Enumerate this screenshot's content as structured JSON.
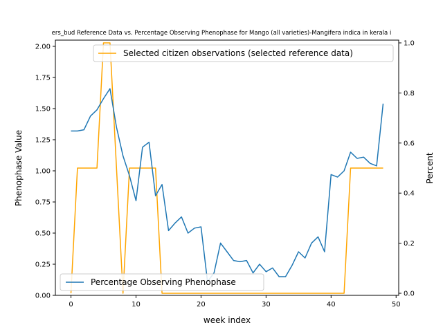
{
  "chart_data": {
    "type": "line",
    "title": "ers_bud Reference Data vs. Percentage Observing Phenophase for Mango (all varieties)-Mangifera indica in kerala i",
    "xlabel": "week index",
    "ylabel_left": "Phenophase Value",
    "ylabel_right": "Percent",
    "xlim": [
      -2.4,
      50.4
    ],
    "ylim_left": [
      0,
      2.05
    ],
    "ylim_right": [
      0,
      1.0
    ],
    "x_ticks": [
      0,
      10,
      20,
      30,
      40,
      50
    ],
    "y_left_ticks": [
      "0.00",
      "0.25",
      "0.50",
      "0.75",
      "1.00",
      "1.25",
      "1.50",
      "1.75",
      "2.00"
    ],
    "y_right_ticks": [
      "0.0",
      "0.2",
      "0.4",
      "0.6",
      "0.8",
      "1.0"
    ],
    "grid": false,
    "series": [
      {
        "name": "Percentage Observing Phenophase",
        "axis": "left",
        "color": "#1f77b4",
        "legend_position": "lower-left",
        "x": [
          0,
          1,
          2,
          3,
          4,
          5,
          6,
          7,
          8,
          9,
          10,
          11,
          12,
          13,
          14,
          15,
          16,
          17,
          18,
          19,
          20,
          21,
          22,
          23,
          24,
          25,
          26,
          27,
          28,
          29,
          30,
          31,
          32,
          33,
          34,
          35,
          36,
          37,
          38,
          39,
          40,
          41,
          42,
          43,
          44,
          45,
          46,
          47,
          48
        ],
        "values": [
          1.32,
          1.32,
          1.33,
          1.44,
          1.49,
          1.58,
          1.66,
          1.35,
          1.12,
          0.96,
          0.76,
          1.19,
          1.23,
          0.8,
          0.89,
          0.52,
          0.58,
          0.63,
          0.5,
          0.54,
          0.55,
          0.11,
          0.18,
          0.42,
          0.35,
          0.28,
          0.27,
          0.28,
          0.18,
          0.25,
          0.19,
          0.22,
          0.15,
          0.15,
          0.24,
          0.35,
          0.3,
          0.42,
          0.47,
          0.35,
          0.97,
          0.95,
          1.0,
          1.15,
          1.1,
          1.11,
          1.06,
          1.04,
          1.54
        ]
      },
      {
        "name": "Selected citizen observations (selected reference data)",
        "axis": "right",
        "color": "#ffa500",
        "legend_position": "upper-right",
        "x": [
          0,
          1,
          2,
          3,
          4,
          5,
          6,
          7,
          8,
          9,
          10,
          11,
          12,
          13,
          14,
          15,
          16,
          17,
          18,
          19,
          20,
          21,
          22,
          23,
          24,
          25,
          26,
          27,
          28,
          29,
          30,
          31,
          32,
          33,
          34,
          35,
          36,
          37,
          38,
          39,
          40,
          41,
          42,
          43,
          44,
          45,
          46,
          47,
          48
        ],
        "values": [
          0,
          0.5,
          0.5,
          0.5,
          0.5,
          1,
          1,
          0.5,
          0,
          0.5,
          0.5,
          0.5,
          0.5,
          0.5,
          0,
          0,
          0,
          0,
          0,
          0,
          0,
          0,
          0,
          0,
          0,
          0,
          0,
          0,
          0,
          0,
          0,
          0,
          0,
          0,
          0,
          0,
          0,
          0,
          0,
          0,
          0,
          0,
          0,
          0.5,
          0.5,
          0.5,
          0.5,
          0.5,
          0.5
        ]
      }
    ]
  }
}
